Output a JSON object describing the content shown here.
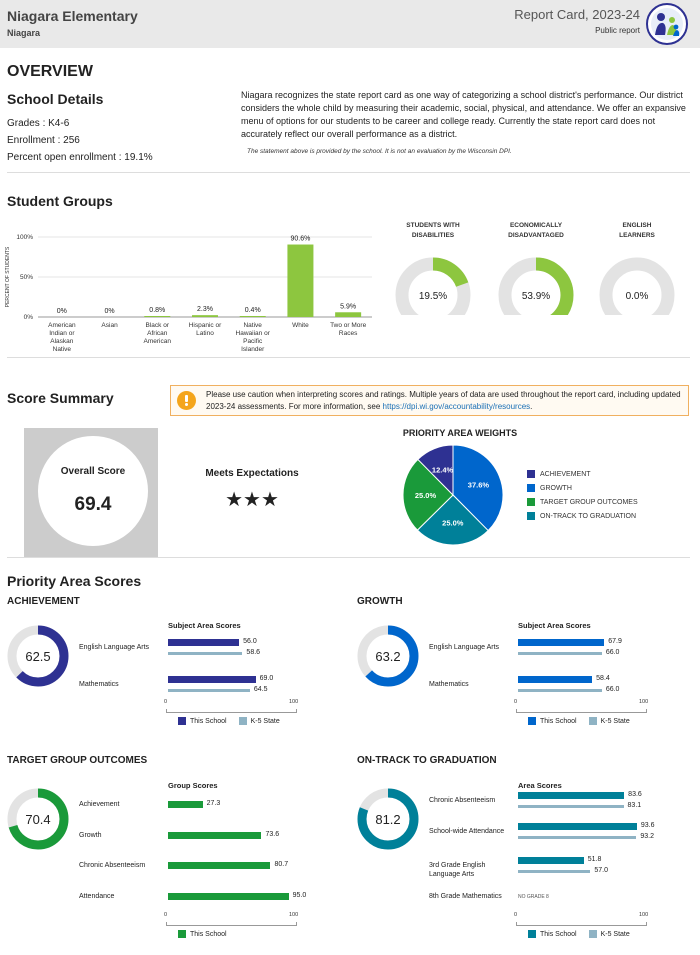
{
  "header": {
    "school_name": "Niagara Elementary",
    "district": "Niagara",
    "report_title": "Report Card, 2023-24",
    "report_type": "Public report"
  },
  "overview": {
    "heading": "OVERVIEW",
    "details_heading": "School Details",
    "grades_label": "Grades :",
    "grades_value": "K4-6",
    "enrollment_label": "Enrollment :",
    "enrollment_value": "256",
    "open_label": "Percent open enrollment :",
    "open_value": "19.1%",
    "statement": "Niagara recognizes the state report card as one way of categorizing a school district's performance. Our district considers the whole child by measuring their academic, social, physical, and attendance. We offer an expansive menu of options for our students to be career and college ready. Currently the state report card does not accurately reflect our overall performance as a district.",
    "note": "The statement above is provided by the school. It is not an evaluation by the Wisconsin DPI."
  },
  "student_groups": {
    "heading": "Student Groups",
    "ylabel": "PERCENT OF STUDENTS",
    "yticks": [
      "100%",
      "50%",
      "0%"
    ],
    "donuts": [
      {
        "label_1": "STUDENTS WITH",
        "label_2": "DISABILITIES",
        "value": 19.5,
        "text": "19.5%"
      },
      {
        "label_1": "ECONOMICALLY",
        "label_2": "DISADVANTAGED",
        "value": 53.9,
        "text": "53.9%"
      },
      {
        "label_1": "ENGLISH",
        "label_2": "LEARNERS",
        "value": 0.0,
        "text": "0.0%"
      }
    ]
  },
  "chart_data": {
    "type": "bar",
    "categories": [
      "American Indian or Alaskan Native",
      "Asian",
      "Black or African American",
      "Hispanic or Latino",
      "Native Hawaiian or Pacific Islander",
      "White",
      "Two or More Races"
    ],
    "values": [
      0,
      0,
      0.8,
      2.3,
      0.4,
      90.6,
      5.9
    ],
    "value_labels": [
      "0%",
      "0%",
      "0.8%",
      "2.3%",
      "0.4%",
      "90.6%",
      "5.9%"
    ],
    "ylabel": "PERCENT OF STUDENTS",
    "ylim": [
      0,
      100
    ],
    "color": "#8dc63f"
  },
  "score_summary": {
    "heading": "Score Summary",
    "warning_text": "Please use caution when interpreting scores and ratings. Multiple years of data are used throughout the report card, including updated 2023-24 assessments. For more information, see ",
    "warning_link": "https://dpi.wi.gov/accountability/resources",
    "warning_end": ".",
    "overall_label": "Overall Score",
    "overall_value": "69.4",
    "rating": "Meets Expectations",
    "stars": "★★★",
    "weights_title": "PRIORITY AREA WEIGHTS",
    "weights": [
      {
        "name": "ACHIEVEMENT",
        "value": 12.4,
        "text": "12.4%",
        "color": "#2e3192"
      },
      {
        "name": "GROWTH",
        "value": 37.6,
        "text": "37.6%",
        "color": "#0066cc"
      },
      {
        "name": "TARGET GROUP OUTCOMES",
        "value": 25.0,
        "text": "25.0%",
        "color": "#1a9a3a"
      },
      {
        "name": "ON-TRACK TO GRADUATION",
        "value": 25.0,
        "text": "25.0%",
        "color": "#008099"
      }
    ]
  },
  "priority": {
    "heading": "Priority Area Scores",
    "axis_min": "0",
    "axis_max": "100",
    "legend_school": "This School",
    "legend_state": "K-5 State",
    "state_color": "#8fb3c4",
    "panels": [
      {
        "title": "ACHIEVEMENT",
        "score": 62.5,
        "score_text": "62.5",
        "color": "#2e3192",
        "sub_title": "Subject Area Scores",
        "has_state": true,
        "rows": [
          {
            "label": "English Language Arts",
            "school": 56.0,
            "school_text": "56.0",
            "state": 58.6,
            "state_text": "58.6"
          },
          {
            "label": "Mathematics",
            "school": 69.0,
            "school_text": "69.0",
            "state": 64.5,
            "state_text": "64.5"
          }
        ]
      },
      {
        "title": "GROWTH",
        "score": 63.2,
        "score_text": "63.2",
        "color": "#0066cc",
        "sub_title": "Subject Area Scores",
        "has_state": true,
        "rows": [
          {
            "label": "English Language Arts",
            "school": 67.9,
            "school_text": "67.9",
            "state": 66.0,
            "state_text": "66.0"
          },
          {
            "label": "Mathematics",
            "school": 58.4,
            "school_text": "58.4",
            "state": 66.0,
            "state_text": "66.0"
          }
        ]
      },
      {
        "title": "TARGET GROUP OUTCOMES",
        "score": 70.4,
        "score_text": "70.4",
        "color": "#1a9a3a",
        "sub_title": "Group Scores",
        "has_state": false,
        "rows": [
          {
            "label": "Achievement",
            "school": 27.3,
            "school_text": "27.3"
          },
          {
            "label": "Growth",
            "school": 73.6,
            "school_text": "73.6"
          },
          {
            "label": "Chronic Absenteeism",
            "school": 80.7,
            "school_text": "80.7"
          },
          {
            "label": "Attendance",
            "school": 95.0,
            "school_text": "95.0"
          }
        ]
      },
      {
        "title": "ON-TRACK TO GRADUATION",
        "score": 81.2,
        "score_text": "81.2",
        "color": "#008099",
        "sub_title": "Area Scores",
        "has_state": true,
        "rows": [
          {
            "label": "Chronic Absenteeism",
            "school": 83.6,
            "school_text": "83.6",
            "state": 83.1,
            "state_text": "83.1"
          },
          {
            "label": "School-wide Attendance",
            "school": 93.6,
            "school_text": "93.6",
            "state": 93.2,
            "state_text": "93.2"
          },
          {
            "label": "3rd Grade English Language Arts",
            "school": 51.8,
            "school_text": "51.8",
            "state": 57.0,
            "state_text": "57.0"
          },
          {
            "label": "8th Grade Mathematics",
            "no_data": "NO GRADE 8"
          }
        ]
      }
    ]
  }
}
